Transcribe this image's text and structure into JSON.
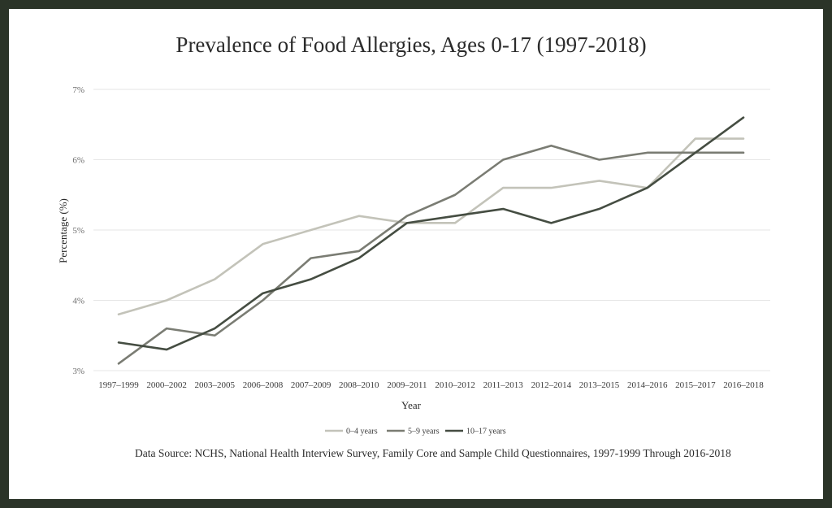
{
  "chart_data": {
    "type": "line",
    "title": "Prevalence of Food Allergies, Ages 0-17 (1997-2018)",
    "xlabel": "Year",
    "ylabel": "Percentage (%)",
    "ylim": [
      3,
      7
    ],
    "y_ticks": [
      "3%",
      "4%",
      "5%",
      "6%",
      "7%"
    ],
    "grid": true,
    "legend_position": "bottom",
    "categories": [
      "1997–1999",
      "2000–2002",
      "2003–2005",
      "2006–2008",
      "2007–2009",
      "2008–2010",
      "2009–2011",
      "2010–2012",
      "2011–2013",
      "2012–2014",
      "2013–2015",
      "2014–2016",
      "2015–2017",
      "2016–2018"
    ],
    "series": [
      {
        "name": "0–4 years",
        "color": "#c3c3b9",
        "values": [
          3.8,
          4.0,
          4.3,
          4.8,
          5.0,
          5.2,
          5.1,
          5.1,
          5.6,
          5.6,
          5.7,
          5.6,
          6.3,
          6.3
        ]
      },
      {
        "name": "5–9 years",
        "color": "#7a7c73",
        "values": [
          3.1,
          3.6,
          3.5,
          4.0,
          4.6,
          4.7,
          5.2,
          5.5,
          6.0,
          6.2,
          6.0,
          6.1,
          6.1,
          6.1
        ]
      },
      {
        "name": "10–17 years",
        "color": "#454d42",
        "values": [
          3.4,
          3.3,
          3.6,
          4.1,
          4.3,
          4.6,
          5.1,
          5.2,
          5.3,
          5.1,
          5.3,
          5.6,
          6.1,
          6.6
        ]
      }
    ],
    "source": "Data Source: NCHS, National Health Interview Survey, Family Core and Sample Child Questionnaires, 1997-1999 Through 2016-2018"
  }
}
